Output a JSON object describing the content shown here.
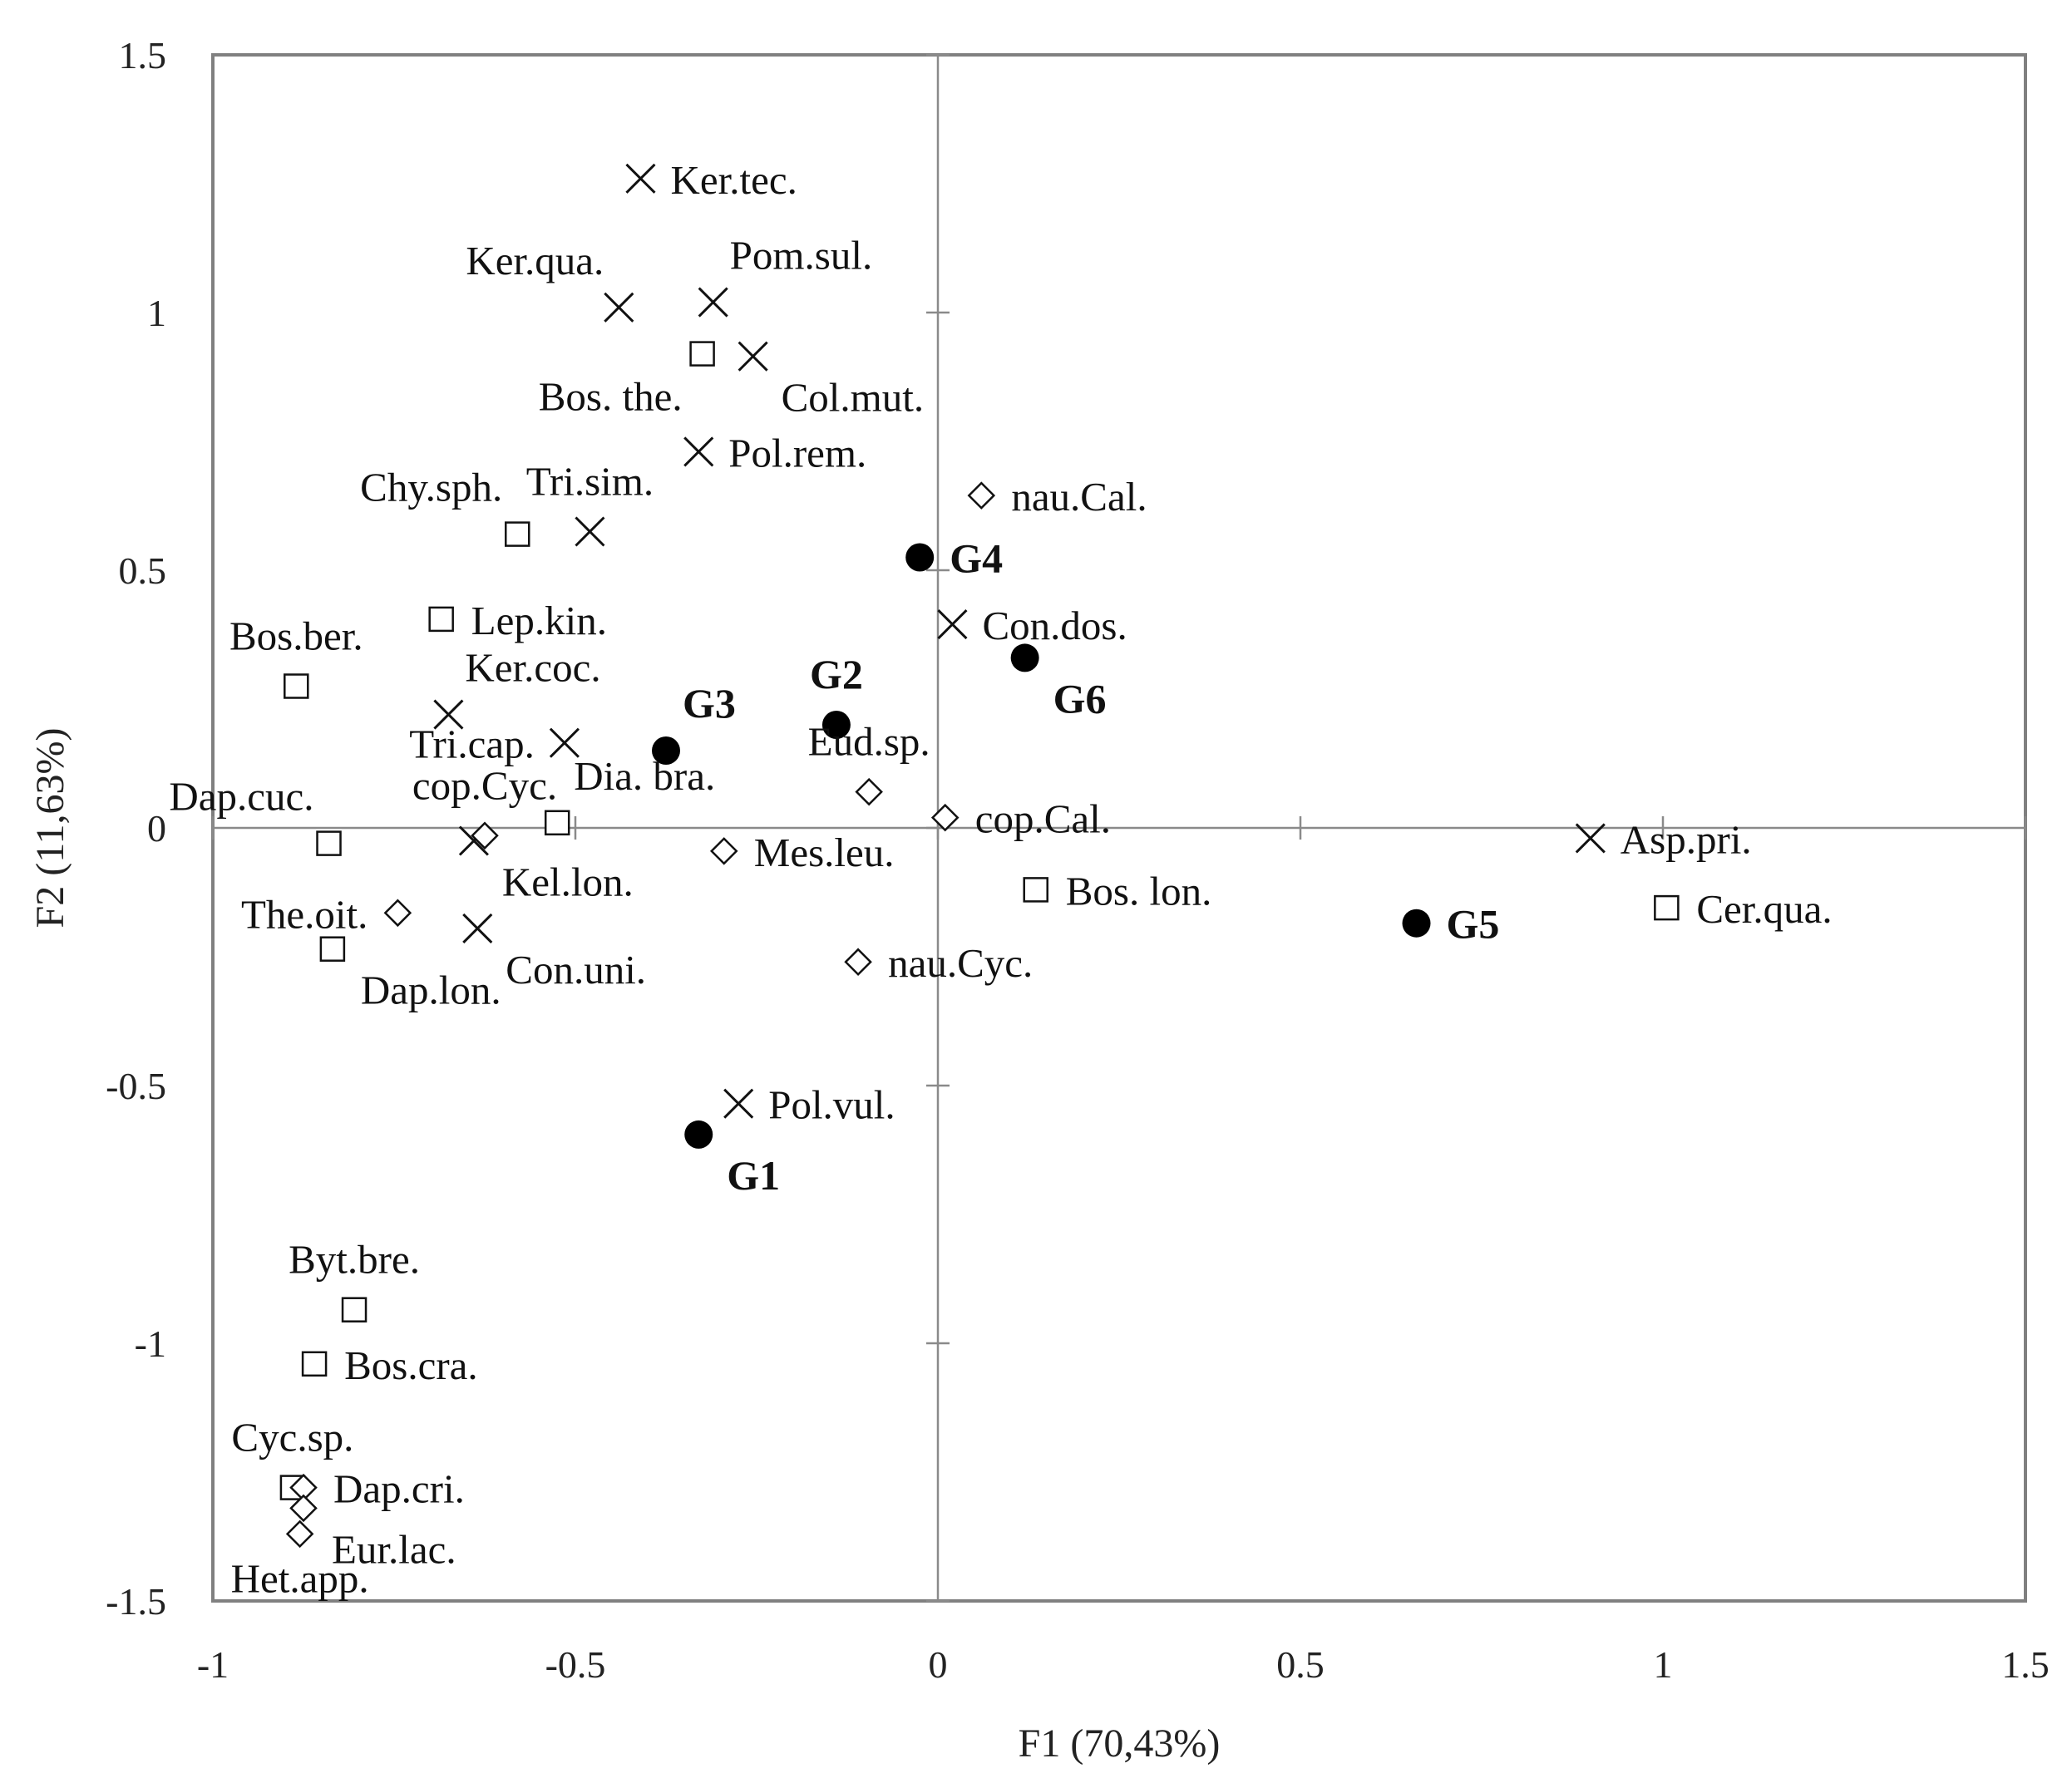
{
  "chart_data": {
    "type": "scatter",
    "title": "",
    "xlabel": "F1 (70,43%)",
    "ylabel": "F2 (11,63%)",
    "xlim": [
      -1,
      1.5
    ],
    "ylim": [
      -1.5,
      1.5
    ],
    "xticks": [
      "-1",
      "-0.5",
      "0",
      "0.5",
      "1",
      "1.5"
    ],
    "yticks": [
      "-1.5",
      "-1",
      "-0.5",
      "0",
      "0.5",
      "1",
      "1.5"
    ],
    "xtick_values": [
      -1,
      -0.5,
      0,
      0.5,
      1,
      1.5
    ],
    "ytick_values": [
      -1.5,
      -1,
      -0.5,
      0,
      0.5,
      1,
      1.5
    ],
    "grid": false,
    "series": [
      {
        "name": "cross",
        "marker": "x",
        "points": [
          {
            "x": -0.41,
            "y": 1.26,
            "label": "Ker.tec.",
            "anchor": "e"
          },
          {
            "x": -0.44,
            "y": 1.01,
            "label": "Ker.qua.",
            "anchor": "nw"
          },
          {
            "x": -0.31,
            "y": 1.02,
            "label": "Pom.sul.",
            "anchor": "ne"
          },
          {
            "x": -0.255,
            "y": 0.915,
            "label": "Col.mut.",
            "anchor": "se"
          },
          {
            "x": -0.33,
            "y": 0.73,
            "label": "Pol.rem.",
            "anchor": "e"
          },
          {
            "x": -0.48,
            "y": 0.575,
            "label": "Tri.sim.",
            "anchor": "n"
          },
          {
            "x": 0.02,
            "y": 0.395,
            "label": "Con.dos.",
            "anchor": "e"
          },
          {
            "x": -0.675,
            "y": 0.22,
            "label": "Ker.coc.",
            "anchor": "ne"
          },
          {
            "x": -0.515,
            "y": 0.165,
            "label": "Tri.cap.",
            "anchor": "w"
          },
          {
            "x": -0.64,
            "y": -0.025,
            "label": "Kel.lon.",
            "anchor": "se"
          },
          {
            "x": -0.635,
            "y": -0.195,
            "label": "Con.uni.",
            "anchor": "se"
          },
          {
            "x": -0.275,
            "y": -0.535,
            "label": "Pol.vul.",
            "anchor": "e"
          },
          {
            "x": 0.9,
            "y": -0.02,
            "label": "Asp.pri.",
            "anchor": "e"
          }
        ]
      },
      {
        "name": "square",
        "marker": "square",
        "points": [
          {
            "x": -0.325,
            "y": 0.92,
            "label": "Bos. the.",
            "anchor": "sw"
          },
          {
            "x": -0.58,
            "y": 0.57,
            "label": "Chy.sph.",
            "anchor": "nw"
          },
          {
            "x": -0.685,
            "y": 0.405,
            "label": "Lep.kin.",
            "anchor": "e"
          },
          {
            "x": -0.885,
            "y": 0.275,
            "label": "Bos.ber.",
            "anchor": "n"
          },
          {
            "x": -0.525,
            "y": 0.01,
            "label": "Dia. bra.",
            "anchor": "ne"
          },
          {
            "x": -0.84,
            "y": -0.03,
            "label": "Dap.cuc.",
            "anchor": "nw"
          },
          {
            "x": -0.835,
            "y": -0.235,
            "label": "Dap.lon.",
            "anchor": "se"
          },
          {
            "x": 0.135,
            "y": -0.12,
            "label": "Bos. lon.",
            "anchor": "e"
          },
          {
            "x": 1.005,
            "y": -0.155,
            "label": "Cer.qua.",
            "anchor": "e"
          },
          {
            "x": -0.805,
            "y": -0.935,
            "label": "Byt.bre.",
            "anchor": "n"
          },
          {
            "x": -0.86,
            "y": -1.04,
            "label": "Bos.cra.",
            "anchor": "e"
          },
          {
            "x": -0.89,
            "y": -1.28,
            "label": "Cyc.sp.",
            "anchor": "n"
          }
        ]
      },
      {
        "name": "diamond",
        "marker": "diamond",
        "points": [
          {
            "x": 0.06,
            "y": 0.645,
            "label": "nau.Cal.",
            "anchor": "e"
          },
          {
            "x": -0.095,
            "y": 0.07,
            "label": "Eud.sp.",
            "anchor": "n"
          },
          {
            "x": 0.01,
            "y": 0.02,
            "label": "cop.Cal.",
            "anchor": "e"
          },
          {
            "x": -0.625,
            "y": -0.015,
            "label": "cop.Cyc.",
            "anchor": "n"
          },
          {
            "x": -0.295,
            "y": -0.045,
            "label": "Mes.leu.",
            "anchor": "e"
          },
          {
            "x": -0.745,
            "y": -0.165,
            "label": "The.oit.",
            "anchor": "w"
          },
          {
            "x": -0.11,
            "y": -0.26,
            "label": "nau.Cyc.",
            "anchor": "e"
          },
          {
            "x": -0.875,
            "y": -1.28,
            "label": "Dap.cri.",
            "anchor": "e"
          },
          {
            "x": -0.875,
            "y": -1.32,
            "label": "Eur.lac.",
            "anchor": "se"
          },
          {
            "x": -0.88,
            "y": -1.37,
            "label": "Het.app.",
            "anchor": "s"
          }
        ]
      },
      {
        "name": "groups",
        "marker": "circle",
        "points": [
          {
            "x": -0.33,
            "y": -0.595,
            "label": "G1",
            "anchor": "se"
          },
          {
            "x": -0.14,
            "y": 0.2,
            "label": "G2",
            "anchor": "n"
          },
          {
            "x": -0.375,
            "y": 0.15,
            "label": "G3",
            "anchor": "ne"
          },
          {
            "x": -0.025,
            "y": 0.525,
            "label": "G4",
            "anchor": "e"
          },
          {
            "x": 0.66,
            "y": -0.185,
            "label": "G5",
            "anchor": "e"
          },
          {
            "x": 0.12,
            "y": 0.33,
            "label": "G6",
            "anchor": "se"
          }
        ]
      }
    ]
  }
}
